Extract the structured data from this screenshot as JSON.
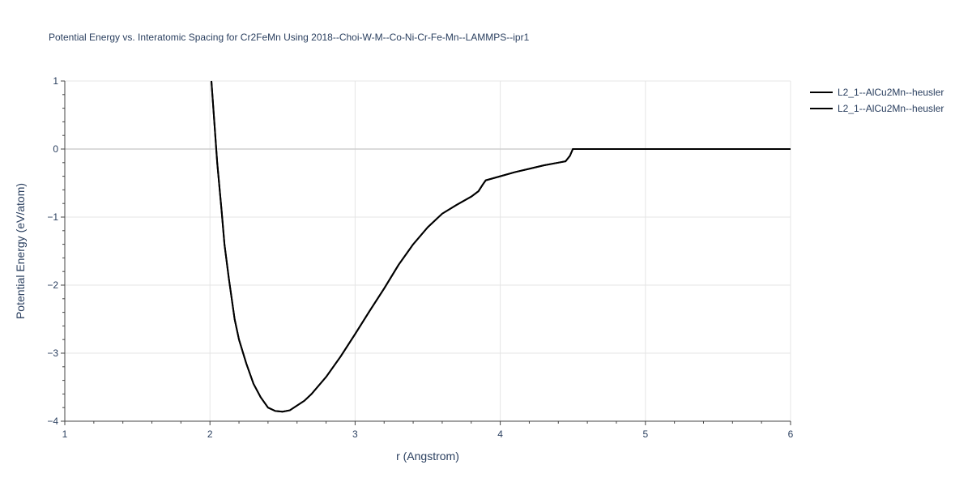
{
  "chart_data": {
    "type": "line",
    "title": "Potential Energy vs. Interatomic Spacing for Cr2FeMn Using 2018--Choi-W-M--Co-Ni-Cr-Fe-Mn--LAMMPS--ipr1",
    "xlabel": "r (Angstrom)",
    "ylabel": "Potential Energy (eV/atom)",
    "xlim": [
      1,
      6
    ],
    "ylim": [
      -4,
      1
    ],
    "x_ticks": [
      1,
      2,
      3,
      4,
      5,
      6
    ],
    "y_ticks": [
      1,
      0,
      -1,
      -2,
      -3,
      -4
    ],
    "x_tick_labels": [
      "1",
      "2",
      "3",
      "4",
      "5",
      "6"
    ],
    "y_tick_labels": [
      "1",
      "0",
      "−1",
      "−2",
      "−3",
      "−4"
    ],
    "grid": true,
    "legend_position": "top-right",
    "line_color": "#000000",
    "series": [
      {
        "name": "L2_1--AlCu2Mn--heusler",
        "x": [
          2.01,
          2.03,
          2.05,
          2.08,
          2.1,
          2.13,
          2.17,
          2.2,
          2.25,
          2.3,
          2.35,
          2.4,
          2.45,
          2.5,
          2.55,
          2.6,
          2.65,
          2.7,
          2.8,
          2.9,
          3.0,
          3.1,
          3.2,
          3.3,
          3.4,
          3.5,
          3.6,
          3.7,
          3.8,
          3.85,
          3.88,
          3.9,
          4.0,
          4.1,
          4.2,
          4.3,
          4.4,
          4.45,
          4.48,
          4.5,
          4.6,
          5.0,
          5.5,
          6.0
        ],
        "y": [
          1.0,
          0.4,
          -0.2,
          -0.9,
          -1.4,
          -1.9,
          -2.5,
          -2.8,
          -3.15,
          -3.45,
          -3.65,
          -3.8,
          -3.85,
          -3.86,
          -3.84,
          -3.77,
          -3.7,
          -3.6,
          -3.35,
          -3.05,
          -2.72,
          -2.38,
          -2.05,
          -1.7,
          -1.4,
          -1.15,
          -0.95,
          -0.82,
          -0.7,
          -0.62,
          -0.52,
          -0.46,
          -0.4,
          -0.34,
          -0.29,
          -0.24,
          -0.2,
          -0.18,
          -0.1,
          0.0,
          0.0,
          0.0,
          0.0,
          0.0
        ]
      },
      {
        "name": "L2_1--AlCu2Mn--heusler",
        "x": [
          2.01,
          2.03,
          2.05,
          2.08,
          2.1,
          2.13,
          2.17,
          2.2,
          2.25,
          2.3,
          2.35,
          2.4,
          2.45,
          2.5,
          2.55,
          2.6,
          2.65,
          2.7,
          2.8,
          2.9,
          3.0,
          3.1,
          3.2,
          3.3,
          3.4,
          3.5,
          3.6,
          3.7,
          3.8,
          3.85,
          3.88,
          3.9,
          4.0,
          4.1,
          4.2,
          4.3,
          4.4,
          4.45,
          4.48,
          4.5,
          4.6,
          5.0,
          5.5,
          6.0
        ],
        "y": [
          1.0,
          0.4,
          -0.2,
          -0.9,
          -1.4,
          -1.9,
          -2.5,
          -2.8,
          -3.15,
          -3.45,
          -3.65,
          -3.8,
          -3.85,
          -3.86,
          -3.84,
          -3.77,
          -3.7,
          -3.6,
          -3.35,
          -3.05,
          -2.72,
          -2.38,
          -2.05,
          -1.7,
          -1.4,
          -1.15,
          -0.95,
          -0.82,
          -0.7,
          -0.62,
          -0.52,
          -0.46,
          -0.4,
          -0.34,
          -0.29,
          -0.24,
          -0.2,
          -0.18,
          -0.1,
          0.0,
          0.0,
          0.0,
          0.0,
          0.0
        ]
      }
    ]
  }
}
